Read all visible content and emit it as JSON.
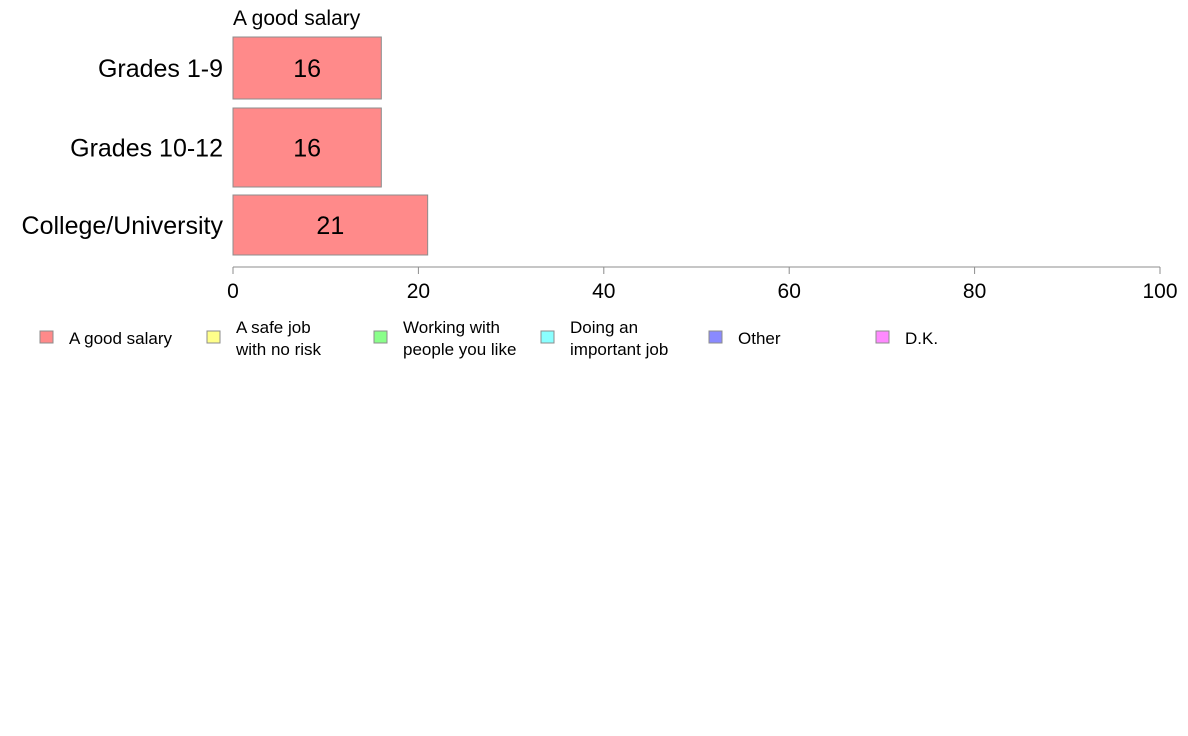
{
  "chart_data": {
    "type": "bar",
    "orientation": "horizontal",
    "title": "A good salary",
    "categories": [
      "Grades 1-9",
      "Grades 10-12",
      "College/University"
    ],
    "series": [
      {
        "name": "A good salary",
        "values": [
          16,
          16,
          21
        ],
        "labels": [
          "16",
          "16",
          "21"
        ],
        "color": "#ff8a8a"
      }
    ],
    "xlim": [
      0,
      100
    ],
    "xticks": [
      0,
      20,
      40,
      60,
      80,
      100
    ],
    "xtick_labels": [
      "0",
      "20",
      "40",
      "60",
      "80",
      "100"
    ],
    "grid": false,
    "legend_position": "bottom",
    "legend": [
      {
        "lines": [
          "A good salary"
        ],
        "color": "#ff8a8a"
      },
      {
        "lines": [
          "A safe job",
          "with no risk"
        ],
        "color": "#ffff8a"
      },
      {
        "lines": [
          "Working with",
          "people you like"
        ],
        "color": "#8aff8a"
      },
      {
        "lines": [
          "Doing an",
          "important job"
        ],
        "color": "#8affff"
      },
      {
        "lines": [
          "Other"
        ],
        "color": "#8a8aff"
      },
      {
        "lines": [
          "D.K."
        ],
        "color": "#ff8aff"
      }
    ]
  }
}
